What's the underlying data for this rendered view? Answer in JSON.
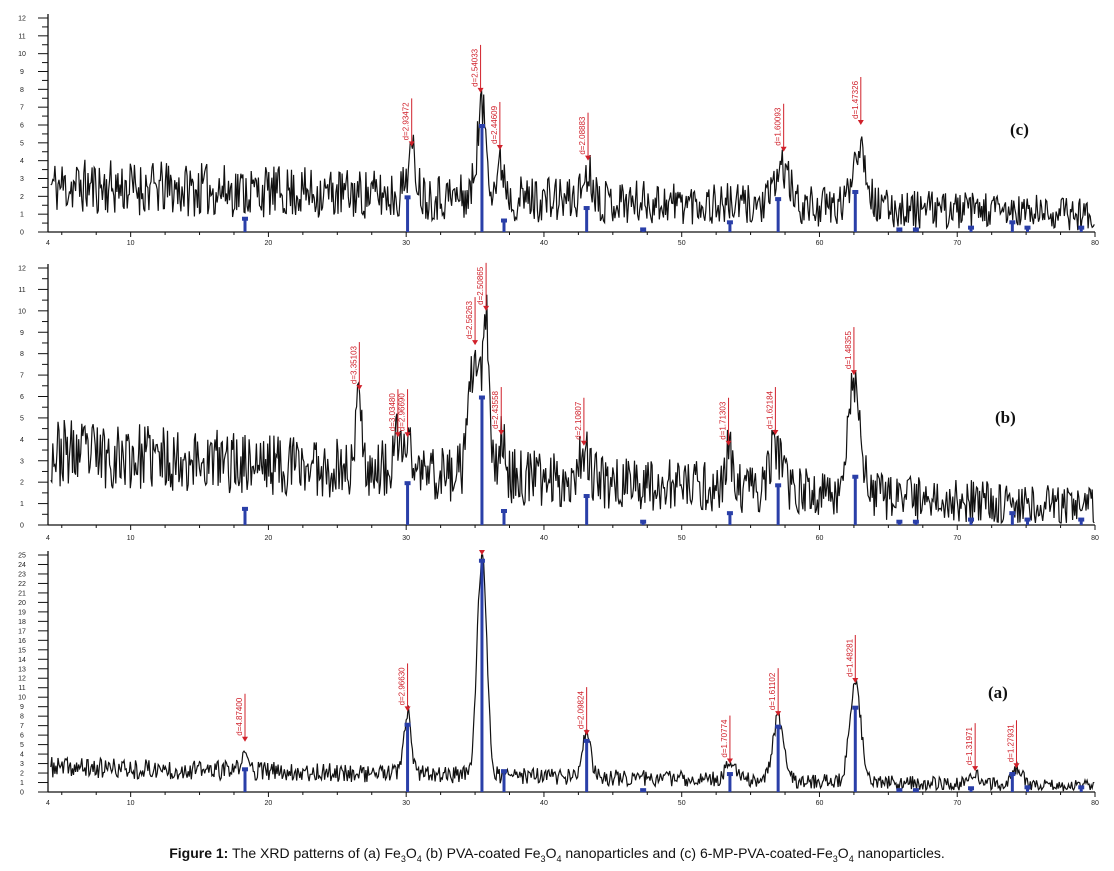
{
  "caption": {
    "prefix": "Figure 1:",
    "parts": [
      "The XRD patterns of (a) Fe",
      "3",
      "O",
      "4",
      " (b) PVA-coated Fe",
      "3",
      "O",
      "4",
      " nanoparticles and (c) 6-MP-PVA-coated-Fe",
      "3",
      "O",
      "4",
      " nanoparticles."
    ]
  },
  "chart_data": [
    {
      "type": "line",
      "panel_label": "(c)",
      "xlabel": "",
      "ylabel": "",
      "xlim": [
        4,
        80
      ],
      "ylim": [
        0,
        12
      ],
      "x_ticks": [
        4,
        10,
        20,
        30,
        40,
        50,
        60,
        70,
        80
      ],
      "y_ticks": [
        0,
        1,
        2,
        3,
        4,
        5,
        6,
        7,
        8,
        9,
        10,
        11,
        12
      ],
      "background": {
        "start": 2.6,
        "end": 1.0,
        "noise": 1.6
      },
      "peaks": [
        [
          30.4,
          2.3,
          0.35
        ],
        [
          35.5,
          5.0,
          0.35
        ],
        [
          36.9,
          1.8,
          0.3
        ],
        [
          43.2,
          1.5,
          0.4
        ],
        [
          57.3,
          2.2,
          0.5
        ],
        [
          62.9,
          3.6,
          0.5
        ]
      ],
      "reference_bars": {
        "two_theta": [
          18.3,
          30.1,
          35.5,
          37.1,
          43.1,
          47.2,
          53.5,
          57.0,
          62.6,
          65.8,
          67.0,
          71.0,
          74.0,
          75.1,
          79.0
        ],
        "intensity": [
          0.8,
          2.0,
          6.0,
          0.7,
          1.4,
          0.2,
          0.6,
          1.9,
          2.3,
          0.2,
          0.2,
          0.3,
          0.6,
          0.3,
          0.3
        ]
      },
      "annotations": [
        {
          "two_theta": 30.4,
          "intensity": 4.8,
          "label": "d=2.93472"
        },
        {
          "two_theta": 35.4,
          "intensity": 7.8,
          "label": "d=2.54033"
        },
        {
          "two_theta": 36.8,
          "intensity": 4.6,
          "label": "d=2.44609"
        },
        {
          "two_theta": 43.2,
          "intensity": 4.0,
          "label": "d=2.08883"
        },
        {
          "two_theta": 57.4,
          "intensity": 4.5,
          "label": "d=1.60093"
        },
        {
          "two_theta": 63.0,
          "intensity": 6.0,
          "label": "d=1.47326"
        }
      ],
      "seed": 11
    },
    {
      "type": "line",
      "panel_label": "(b)",
      "xlabel": "",
      "ylabel": "",
      "xlim": [
        4,
        80
      ],
      "ylim": [
        0,
        12
      ],
      "x_ticks": [
        4,
        10,
        20,
        30,
        40,
        50,
        60,
        70,
        80
      ],
      "y_ticks": [
        0,
        1,
        2,
        3,
        4,
        5,
        6,
        7,
        8,
        9,
        10,
        11,
        12
      ],
      "background": {
        "start": 3.4,
        "end": 0.8,
        "noise": 1.6
      },
      "peaks": [
        [
          26.6,
          4.0,
          0.2
        ],
        [
          29.4,
          1.5,
          0.2
        ],
        [
          30.1,
          1.5,
          0.25
        ],
        [
          35.0,
          5.5,
          0.4
        ],
        [
          35.8,
          7.0,
          0.2
        ],
        [
          36.9,
          1.8,
          0.25
        ],
        [
          42.9,
          1.6,
          0.35
        ],
        [
          53.4,
          2.0,
          0.2
        ],
        [
          56.8,
          2.0,
          0.45
        ],
        [
          62.5,
          5.3,
          0.45
        ]
      ],
      "reference_bars": {
        "two_theta": [
          18.3,
          30.1,
          35.5,
          37.1,
          43.1,
          47.2,
          53.5,
          57.0,
          62.6,
          65.8,
          67.0,
          71.0,
          74.0,
          75.1,
          79.0
        ],
        "intensity": [
          0.8,
          2.0,
          6.0,
          0.7,
          1.4,
          0.2,
          0.6,
          1.9,
          2.3,
          0.2,
          0.2,
          0.3,
          0.6,
          0.3,
          0.3
        ]
      },
      "annotations": [
        {
          "two_theta": 26.6,
          "intensity": 6.3,
          "label": "d=3.35103"
        },
        {
          "two_theta": 29.4,
          "intensity": 4.1,
          "label": "d=3.03480"
        },
        {
          "two_theta": 30.1,
          "intensity": 4.1,
          "label": "d=2.96690"
        },
        {
          "two_theta": 35.0,
          "intensity": 8.4,
          "label": "d=2.56263"
        },
        {
          "two_theta": 35.8,
          "intensity": 10.0,
          "label": "d=2.50865"
        },
        {
          "two_theta": 36.9,
          "intensity": 4.2,
          "label": "d=2.43558"
        },
        {
          "two_theta": 42.9,
          "intensity": 3.7,
          "label": "d=2.10807"
        },
        {
          "two_theta": 53.4,
          "intensity": 3.7,
          "label": "d=1.71303"
        },
        {
          "two_theta": 56.8,
          "intensity": 4.2,
          "label": "d=1.62184"
        },
        {
          "two_theta": 62.5,
          "intensity": 7.0,
          "label": "d=1.48355"
        }
      ],
      "seed": 23
    },
    {
      "type": "line",
      "panel_label": "(a)",
      "xlabel": "",
      "ylabel": "",
      "xlim": [
        4,
        80
      ],
      "ylim": [
        0,
        25
      ],
      "x_ticks": [
        4,
        10,
        20,
        30,
        40,
        50,
        60,
        70,
        80
      ],
      "y_ticks": [
        0,
        1,
        2,
        3,
        4,
        5,
        6,
        7,
        8,
        9,
        10,
        11,
        12,
        13,
        14,
        15,
        16,
        17,
        18,
        19,
        20,
        21,
        22,
        23,
        24,
        25
      ],
      "background": {
        "start": 2.6,
        "end": 0.6,
        "noise": 1.1
      },
      "peaks": [
        [
          18.3,
          1.5,
          0.3
        ],
        [
          30.1,
          6.5,
          0.25
        ],
        [
          35.5,
          23.0,
          0.35
        ],
        [
          43.1,
          4.5,
          0.3
        ],
        [
          53.5,
          2.0,
          0.35
        ],
        [
          57.0,
          6.5,
          0.4
        ],
        [
          62.6,
          10.5,
          0.4
        ],
        [
          71.3,
          1.2,
          0.3
        ],
        [
          74.3,
          1.8,
          0.4
        ]
      ],
      "reference_bars": {
        "two_theta": [
          18.3,
          30.1,
          35.5,
          37.1,
          43.1,
          47.2,
          53.5,
          57.0,
          62.6,
          65.8,
          67.0,
          71.0,
          74.0,
          75.1,
          79.0
        ],
        "intensity": [
          2.5,
          7.2,
          24.5,
          2.3,
          5.5,
          0.3,
          2.0,
          7.0,
          9.0,
          0.3,
          0.3,
          0.5,
          2.0,
          0.6,
          0.6
        ]
      },
      "annotations": [
        {
          "two_theta": 18.3,
          "intensity": 5.3,
          "label": "d=4.87400"
        },
        {
          "two_theta": 30.1,
          "intensity": 8.5,
          "label": "d=2.96630"
        },
        {
          "two_theta": 35.5,
          "intensity": 25.0,
          "label": ""
        },
        {
          "two_theta": 43.1,
          "intensity": 6.0,
          "label": "d=2.09824"
        },
        {
          "two_theta": 53.5,
          "intensity": 3.0,
          "label": "d=1.70774"
        },
        {
          "two_theta": 57.0,
          "intensity": 8.0,
          "label": "d=1.61102"
        },
        {
          "two_theta": 62.6,
          "intensity": 11.5,
          "label": "d=1.48281"
        },
        {
          "two_theta": 71.3,
          "intensity": 2.2,
          "label": "d=1.31971"
        },
        {
          "two_theta": 74.3,
          "intensity": 2.5,
          "label": "d=1.27931"
        }
      ],
      "seed": 37
    }
  ],
  "colors": {
    "trace": "#111111",
    "reference": "#2a3fa8",
    "annotation": "#d0202a"
  }
}
